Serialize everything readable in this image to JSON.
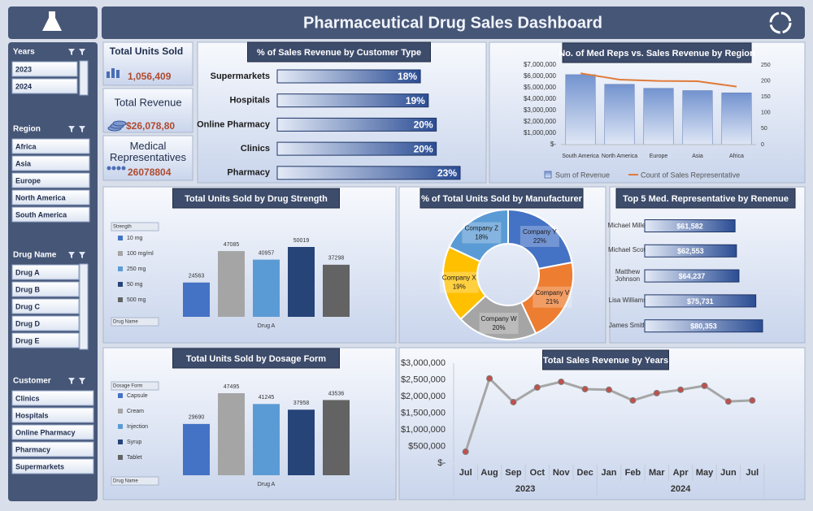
{
  "header": {
    "title": "Pharmaceutical Drug Sales Dashboard"
  },
  "slicers": [
    {
      "title": "Years",
      "items": [
        "2023",
        "2024"
      ]
    },
    {
      "title": "Region",
      "items": [
        "Africa",
        "Asia",
        "Europe",
        "North America",
        "South America"
      ]
    },
    {
      "title": "Drug Name",
      "items": [
        "Drug A",
        "Drug B",
        "Drug C",
        "Drug D",
        "Drug E"
      ]
    },
    {
      "title": "Customer",
      "items": [
        "Clinics",
        "Hospitals",
        "Online Pharmacy",
        "Pharmacy",
        "Supermarkets"
      ]
    }
  ],
  "kpis": [
    {
      "label": "Total Units Sold",
      "value": "1,056,409"
    },
    {
      "label": "Total Revenue",
      "value": "$26,078,80"
    },
    {
      "label": "Medical Representatives",
      "value": "26078804"
    }
  ],
  "chart_data": [
    {
      "type": "bar",
      "orientation": "horizontal",
      "title": "% of Sales Revenue by Customer Type",
      "categories": [
        "Supermarkets",
        "Hospitals",
        "Online Pharmacy",
        "Clinics",
        "Pharmacy"
      ],
      "values": [
        18,
        19,
        20,
        20,
        23
      ],
      "value_labels": [
        "18%",
        "19%",
        "20%",
        "20%",
        "23%"
      ]
    },
    {
      "type": "combo",
      "title": "No. of Med Reps vs. Sales Revenue by Region",
      "categories": [
        "South America",
        "North America",
        "Europe",
        "Asia",
        "Africa"
      ],
      "series": [
        {
          "name": "Sum of Revenue",
          "kind": "bar",
          "color": "#7f9bd0",
          "values": [
            6150000,
            5300000,
            4950000,
            4750000,
            4550000
          ]
        },
        {
          "name": "Count of Sales Representative",
          "kind": "line",
          "axis": "y2",
          "color": "#e07b39",
          "values": [
            224,
            204,
            200,
            199,
            182
          ]
        }
      ],
      "ylim": [
        0,
        7000000
      ],
      "yticks": [
        {
          "value": 0,
          "label": "$-"
        },
        {
          "value": 1000000,
          "label": "$1,000,000"
        },
        {
          "value": 2000000,
          "label": "$2,000,000"
        },
        {
          "value": 3000000,
          "label": "$3,000,000"
        },
        {
          "value": 4000000,
          "label": "$4,000,000"
        },
        {
          "value": 5000000,
          "label": "$5,000,000"
        },
        {
          "value": 6000000,
          "label": "$6,000,000"
        },
        {
          "value": 7000000,
          "label": "$7,000,000"
        }
      ],
      "y2lim": [
        0,
        250
      ],
      "y2ticks": [
        0,
        50,
        100,
        150,
        200,
        250
      ]
    },
    {
      "type": "bar",
      "title": "Total Units Sold by Drug Strength",
      "filter_buttons": [
        "Strength",
        "Drug Name"
      ],
      "categories": [
        "Drug A"
      ],
      "series": [
        {
          "name": "10 mg",
          "color": "#4472c4",
          "values": [
            24563
          ]
        },
        {
          "name": "100 mg/ml",
          "color": "#a5a5a5",
          "values": [
            47085
          ]
        },
        {
          "name": "250 mg",
          "color": "#5b9bd5",
          "values": [
            40957
          ]
        },
        {
          "name": "50 mg",
          "color": "#264478",
          "values": [
            50019
          ]
        },
        {
          "name": "500 mg",
          "color": "#636363",
          "values": [
            37298
          ]
        }
      ]
    },
    {
      "type": "donut",
      "title": "% of Total Units Sold by Manufacturer",
      "categories": [
        "Company Y",
        "Company V",
        "Company W",
        "Company X",
        "Company Z"
      ],
      "values": [
        22,
        21,
        20,
        19,
        18
      ],
      "value_labels": [
        "22%",
        "21%",
        "20%",
        "19%",
        "18%"
      ],
      "colors": [
        "#4472c4",
        "#ed7d31",
        "#a5a5a5",
        "#ffc000",
        "#5b9bd5"
      ]
    },
    {
      "type": "bar",
      "orientation": "horizontal",
      "title": "Top 5 Med. Representative by Renenue",
      "categories": [
        "Michael Miller",
        "Michael Scott",
        "Matthew Johnson",
        "Lisa Williams",
        "James Smith"
      ],
      "values": [
        61582,
        62553,
        64237,
        75731,
        80353
      ],
      "value_labels": [
        "$61,582",
        "$62,553",
        "$64,237",
        "$75,731",
        "$80,353"
      ]
    },
    {
      "type": "bar",
      "title": "Total Units Sold by Dosage Form",
      "filter_buttons": [
        "Dosage Form",
        "Drug Name"
      ],
      "categories": [
        "Drug A"
      ],
      "series": [
        {
          "name": "Capsule",
          "color": "#4472c4",
          "values": [
            29690
          ]
        },
        {
          "name": "Cream",
          "color": "#a5a5a5",
          "values": [
            47495
          ]
        },
        {
          "name": "Injection",
          "color": "#5b9bd5",
          "values": [
            41245
          ]
        },
        {
          "name": "Syrup",
          "color": "#264478",
          "values": [
            37958
          ]
        },
        {
          "name": "Tablet",
          "color": "#636363",
          "values": [
            43536
          ]
        }
      ]
    },
    {
      "type": "line",
      "title": "Total Sales Revenue by Years",
      "categories": [
        "Jul",
        "Aug",
        "Sep",
        "Oct",
        "Nov",
        "Dec",
        "Jan",
        "Feb",
        "Mar",
        "Apr",
        "May",
        "Jun",
        "Jul"
      ],
      "year_labels": [
        "2023",
        "2024"
      ],
      "series": [
        {
          "color": "#a6a6a6",
          "marker_color": "#c0504d",
          "values": [
            340000,
            2540000,
            1830000,
            2270000,
            2440000,
            2220000,
            2200000,
            1880000,
            2100000,
            2200000,
            2320000,
            1850000,
            1880000
          ]
        }
      ],
      "ylim": [
        0,
        3000000
      ],
      "yticks": [
        {
          "value": 0,
          "label": "$-"
        },
        {
          "value": 500000,
          "label": "$500,000"
        },
        {
          "value": 1000000,
          "label": "$1,000,000"
        },
        {
          "value": 1500000,
          "label": "$1,500,000"
        },
        {
          "value": 2000000,
          "label": "$2,000,000"
        },
        {
          "value": 2500000,
          "label": "$2,500,000"
        },
        {
          "value": 3000000,
          "label": "$3,000,000"
        }
      ],
      "grid": false
    }
  ]
}
